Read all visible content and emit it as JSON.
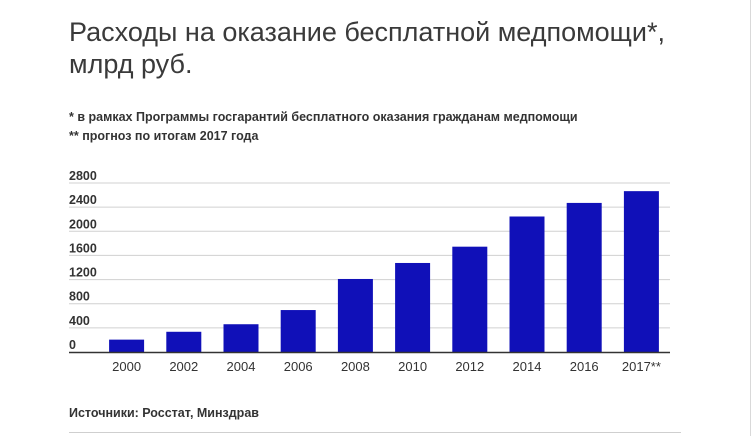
{
  "title": "Расходы на оказание бесплатной медпомощи*, млрд руб.",
  "notes": {
    "note1": "* в рамках Программы госгарантий бесплатного оказания гражданам медпомощи",
    "note2": "** прогноз по итогам 2017 года"
  },
  "source": "Источники: Росстат, Минздрав",
  "colors": {
    "bar": "#1010b8",
    "grid": "#d0d0d0",
    "axis": "#333333"
  },
  "chart_data": {
    "type": "bar",
    "title": "Расходы на оказание бесплатной медпомощи*, млрд руб.",
    "xlabel": "",
    "ylabel": "",
    "categories": [
      "2000",
      "2002",
      "2004",
      "2006",
      "2008",
      "2010",
      "2012",
      "2014",
      "2016",
      "2017**"
    ],
    "values": [
      205,
      335,
      460,
      695,
      1210,
      1475,
      1745,
      2245,
      2470,
      2665
    ],
    "ylim": [
      0,
      2800
    ],
    "yticks": [
      0,
      400,
      800,
      1200,
      1600,
      2000,
      2400,
      2800
    ],
    "grid": true,
    "legend": "none"
  }
}
